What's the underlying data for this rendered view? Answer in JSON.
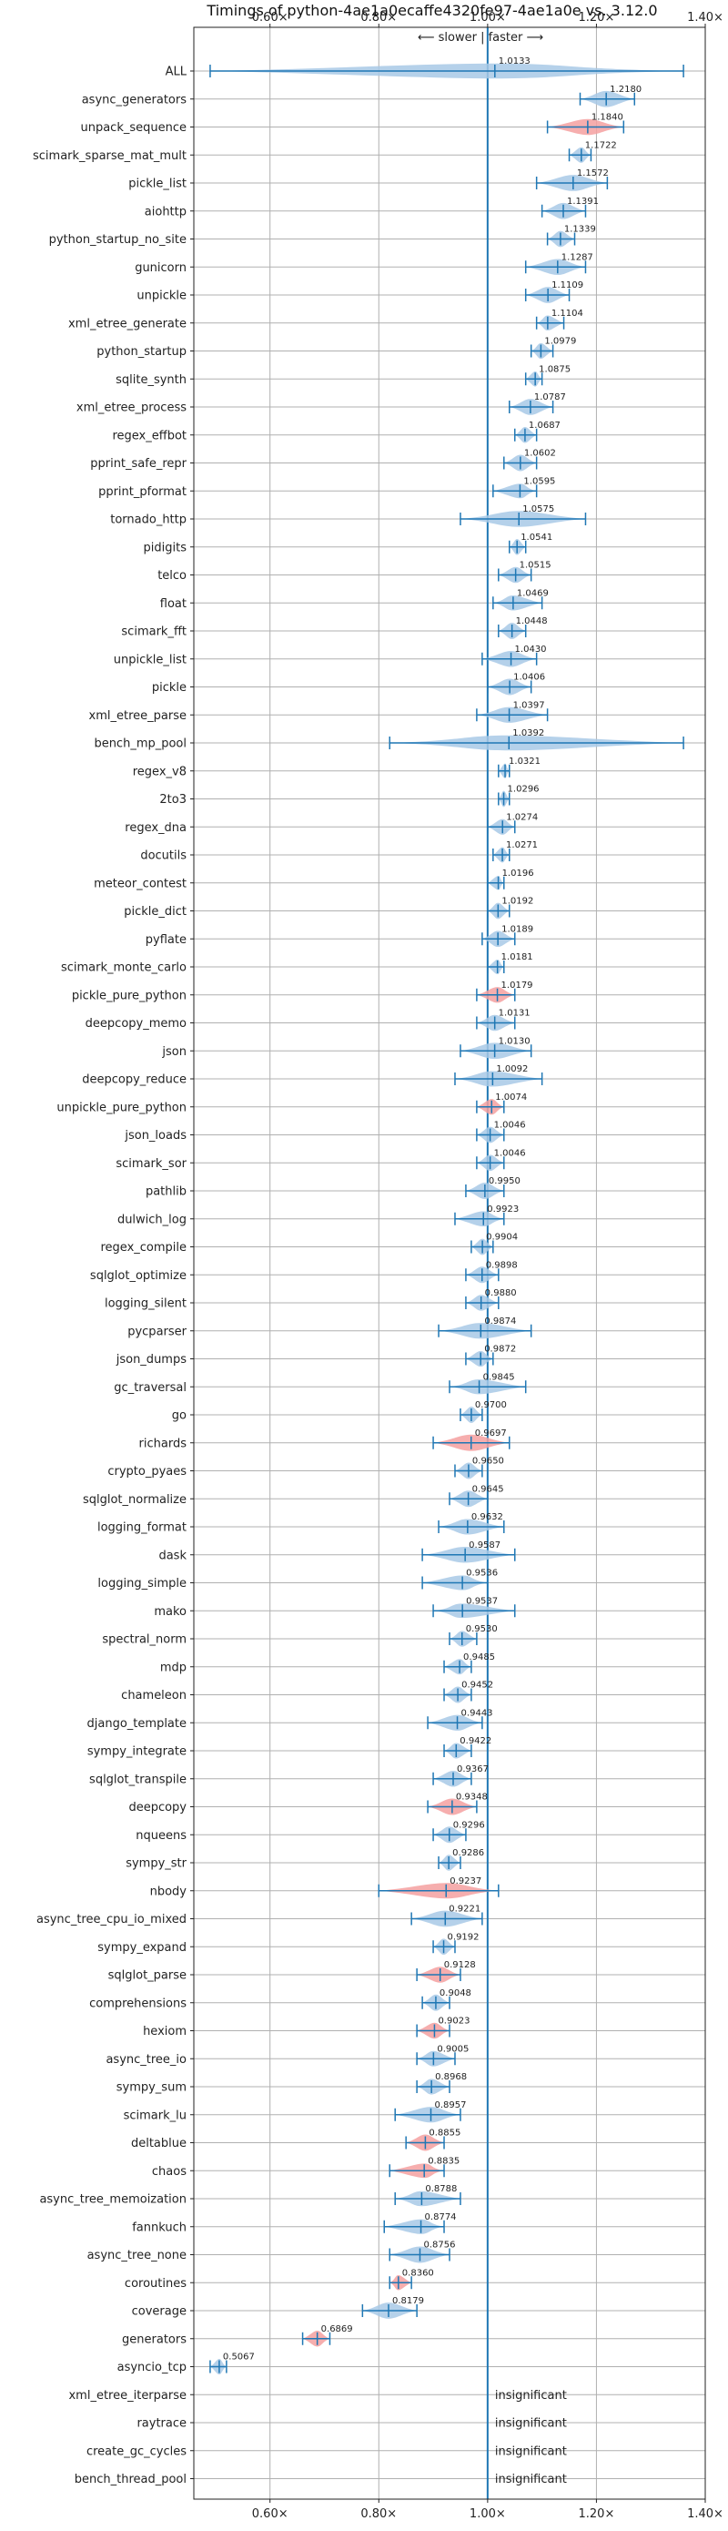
{
  "chart_data": {
    "type": "violin",
    "title": "Timings of python-4ae1a0ecaffe4320fe97-4ae1a0e vs. 3.12.0",
    "direction_annotation": "⟵ slower | faster ⟶",
    "xlim": [
      0.46,
      1.4
    ],
    "x_ticks": [
      0.6,
      0.8,
      1.0,
      1.2,
      1.4
    ],
    "x_tick_labels": [
      "0.60×",
      "0.80×",
      "1.00×",
      "1.20×",
      "1.40×"
    ],
    "reference_line": 1.0,
    "grid": true,
    "colors": {
      "faster": "#1f77b4",
      "faster_fill": "#a8c9e6",
      "slower_fill": "#f4a0a0",
      "grid": "#b0b0b0"
    },
    "insignificant_label": "insignificant",
    "benchmarks": [
      {
        "name": "ALL",
        "value": 1.0133,
        "min": 0.49,
        "max": 1.36,
        "color": "faster"
      },
      {
        "name": "async_generators",
        "value": 1.218,
        "min": 1.17,
        "max": 1.27,
        "color": "faster"
      },
      {
        "name": "unpack_sequence",
        "value": 1.184,
        "min": 1.11,
        "max": 1.25,
        "color": "slower"
      },
      {
        "name": "scimark_sparse_mat_mult",
        "value": 1.1722,
        "min": 1.15,
        "max": 1.19,
        "color": "faster"
      },
      {
        "name": "pickle_list",
        "value": 1.1572,
        "min": 1.09,
        "max": 1.22,
        "color": "faster"
      },
      {
        "name": "aiohttp",
        "value": 1.1391,
        "min": 1.1,
        "max": 1.18,
        "color": "faster"
      },
      {
        "name": "python_startup_no_site",
        "value": 1.1339,
        "min": 1.11,
        "max": 1.16,
        "color": "faster"
      },
      {
        "name": "gunicorn",
        "value": 1.1287,
        "min": 1.07,
        "max": 1.18,
        "color": "faster"
      },
      {
        "name": "unpickle",
        "value": 1.1109,
        "min": 1.07,
        "max": 1.15,
        "color": "faster"
      },
      {
        "name": "xml_etree_generate",
        "value": 1.1104,
        "min": 1.09,
        "max": 1.14,
        "color": "faster"
      },
      {
        "name": "python_startup",
        "value": 1.0979,
        "min": 1.08,
        "max": 1.12,
        "color": "faster"
      },
      {
        "name": "sqlite_synth",
        "value": 1.0875,
        "min": 1.07,
        "max": 1.1,
        "color": "faster"
      },
      {
        "name": "xml_etree_process",
        "value": 1.0787,
        "min": 1.04,
        "max": 1.12,
        "color": "faster"
      },
      {
        "name": "regex_effbot",
        "value": 1.0687,
        "min": 1.05,
        "max": 1.09,
        "color": "faster"
      },
      {
        "name": "pprint_safe_repr",
        "value": 1.0602,
        "min": 1.03,
        "max": 1.09,
        "color": "faster"
      },
      {
        "name": "pprint_pformat",
        "value": 1.0595,
        "min": 1.01,
        "max": 1.09,
        "color": "faster"
      },
      {
        "name": "tornado_http",
        "value": 1.0575,
        "min": 0.95,
        "max": 1.18,
        "color": "faster"
      },
      {
        "name": "pidigits",
        "value": 1.0541,
        "min": 1.04,
        "max": 1.07,
        "color": "faster"
      },
      {
        "name": "telco",
        "value": 1.0515,
        "min": 1.02,
        "max": 1.08,
        "color": "faster"
      },
      {
        "name": "float",
        "value": 1.0469,
        "min": 1.01,
        "max": 1.1,
        "color": "faster"
      },
      {
        "name": "scimark_fft",
        "value": 1.0448,
        "min": 1.02,
        "max": 1.07,
        "color": "faster"
      },
      {
        "name": "unpickle_list",
        "value": 1.043,
        "min": 0.99,
        "max": 1.09,
        "color": "faster"
      },
      {
        "name": "pickle",
        "value": 1.0406,
        "min": 1.0,
        "max": 1.08,
        "color": "faster"
      },
      {
        "name": "xml_etree_parse",
        "value": 1.0397,
        "min": 0.98,
        "max": 1.11,
        "color": "faster"
      },
      {
        "name": "bench_mp_pool",
        "value": 1.0392,
        "min": 0.82,
        "max": 1.36,
        "color": "faster"
      },
      {
        "name": "regex_v8",
        "value": 1.0321,
        "min": 1.02,
        "max": 1.04,
        "color": "faster"
      },
      {
        "name": "2to3",
        "value": 1.0296,
        "min": 1.02,
        "max": 1.04,
        "color": "faster"
      },
      {
        "name": "regex_dna",
        "value": 1.0274,
        "min": 1.0,
        "max": 1.05,
        "color": "faster"
      },
      {
        "name": "docutils",
        "value": 1.0271,
        "min": 1.01,
        "max": 1.04,
        "color": "faster"
      },
      {
        "name": "meteor_contest",
        "value": 1.0196,
        "min": 1.0,
        "max": 1.03,
        "color": "faster"
      },
      {
        "name": "pickle_dict",
        "value": 1.0192,
        "min": 1.0,
        "max": 1.04,
        "color": "faster"
      },
      {
        "name": "pyflate",
        "value": 1.0189,
        "min": 0.99,
        "max": 1.05,
        "color": "faster"
      },
      {
        "name": "scimark_monte_carlo",
        "value": 1.0181,
        "min": 1.0,
        "max": 1.03,
        "color": "faster"
      },
      {
        "name": "pickle_pure_python",
        "value": 1.0179,
        "min": 0.98,
        "max": 1.05,
        "color": "slower"
      },
      {
        "name": "deepcopy_memo",
        "value": 1.0131,
        "min": 0.98,
        "max": 1.05,
        "color": "faster"
      },
      {
        "name": "json",
        "value": 1.013,
        "min": 0.95,
        "max": 1.08,
        "color": "faster"
      },
      {
        "name": "deepcopy_reduce",
        "value": 1.0092,
        "min": 0.94,
        "max": 1.1,
        "color": "faster"
      },
      {
        "name": "unpickle_pure_python",
        "value": 1.0074,
        "min": 0.98,
        "max": 1.03,
        "color": "slower"
      },
      {
        "name": "json_loads",
        "value": 1.0046,
        "min": 0.98,
        "max": 1.03,
        "color": "faster"
      },
      {
        "name": "scimark_sor",
        "value": 1.0046,
        "min": 0.98,
        "max": 1.03,
        "color": "faster"
      },
      {
        "name": "pathlib",
        "value": 0.995,
        "min": 0.96,
        "max": 1.03,
        "color": "faster"
      },
      {
        "name": "dulwich_log",
        "value": 0.9923,
        "min": 0.94,
        "max": 1.03,
        "color": "faster"
      },
      {
        "name": "regex_compile",
        "value": 0.9904,
        "min": 0.97,
        "max": 1.01,
        "color": "faster"
      },
      {
        "name": "sqlglot_optimize",
        "value": 0.9898,
        "min": 0.96,
        "max": 1.02,
        "color": "faster"
      },
      {
        "name": "logging_silent",
        "value": 0.988,
        "min": 0.96,
        "max": 1.02,
        "color": "faster"
      },
      {
        "name": "pycparser",
        "value": 0.9874,
        "min": 0.91,
        "max": 1.08,
        "color": "faster"
      },
      {
        "name": "json_dumps",
        "value": 0.9872,
        "min": 0.96,
        "max": 1.01,
        "color": "faster"
      },
      {
        "name": "gc_traversal",
        "value": 0.9845,
        "min": 0.93,
        "max": 1.07,
        "color": "faster"
      },
      {
        "name": "go",
        "value": 0.97,
        "min": 0.95,
        "max": 0.99,
        "color": "faster"
      },
      {
        "name": "richards",
        "value": 0.9697,
        "min": 0.9,
        "max": 1.04,
        "color": "slower"
      },
      {
        "name": "crypto_pyaes",
        "value": 0.965,
        "min": 0.94,
        "max": 0.99,
        "color": "faster"
      },
      {
        "name": "sqlglot_normalize",
        "value": 0.9645,
        "min": 0.93,
        "max": 1.0,
        "color": "faster"
      },
      {
        "name": "logging_format",
        "value": 0.9632,
        "min": 0.91,
        "max": 1.03,
        "color": "faster"
      },
      {
        "name": "dask",
        "value": 0.9587,
        "min": 0.88,
        "max": 1.05,
        "color": "faster"
      },
      {
        "name": "logging_simple",
        "value": 0.9536,
        "min": 0.88,
        "max": 1.0,
        "color": "faster"
      },
      {
        "name": "mako",
        "value": 0.9537,
        "min": 0.9,
        "max": 1.05,
        "color": "faster"
      },
      {
        "name": "spectral_norm",
        "value": 0.953,
        "min": 0.93,
        "max": 0.98,
        "color": "faster"
      },
      {
        "name": "mdp",
        "value": 0.9485,
        "min": 0.92,
        "max": 0.97,
        "color": "faster"
      },
      {
        "name": "chameleon",
        "value": 0.9452,
        "min": 0.92,
        "max": 0.97,
        "color": "faster"
      },
      {
        "name": "django_template",
        "value": 0.9443,
        "min": 0.89,
        "max": 0.99,
        "color": "faster"
      },
      {
        "name": "sympy_integrate",
        "value": 0.9422,
        "min": 0.92,
        "max": 0.97,
        "color": "faster"
      },
      {
        "name": "sqlglot_transpile",
        "value": 0.9367,
        "min": 0.9,
        "max": 0.97,
        "color": "faster"
      },
      {
        "name": "deepcopy",
        "value": 0.9348,
        "min": 0.89,
        "max": 0.98,
        "color": "slower"
      },
      {
        "name": "nqueens",
        "value": 0.9296,
        "min": 0.9,
        "max": 0.96,
        "color": "faster"
      },
      {
        "name": "sympy_str",
        "value": 0.9286,
        "min": 0.91,
        "max": 0.95,
        "color": "faster"
      },
      {
        "name": "nbody",
        "value": 0.9237,
        "min": 0.8,
        "max": 1.02,
        "color": "slower"
      },
      {
        "name": "async_tree_cpu_io_mixed",
        "value": 0.9221,
        "min": 0.86,
        "max": 0.99,
        "color": "faster"
      },
      {
        "name": "sympy_expand",
        "value": 0.9192,
        "min": 0.9,
        "max": 0.94,
        "color": "faster"
      },
      {
        "name": "sqlglot_parse",
        "value": 0.9128,
        "min": 0.87,
        "max": 0.95,
        "color": "slower"
      },
      {
        "name": "comprehensions",
        "value": 0.9048,
        "min": 0.88,
        "max": 0.93,
        "color": "faster"
      },
      {
        "name": "hexiom",
        "value": 0.9023,
        "min": 0.87,
        "max": 0.93,
        "color": "slower"
      },
      {
        "name": "async_tree_io",
        "value": 0.9005,
        "min": 0.87,
        "max": 0.94,
        "color": "faster"
      },
      {
        "name": "sympy_sum",
        "value": 0.8968,
        "min": 0.87,
        "max": 0.93,
        "color": "faster"
      },
      {
        "name": "scimark_lu",
        "value": 0.8957,
        "min": 0.83,
        "max": 0.95,
        "color": "faster"
      },
      {
        "name": "deltablue",
        "value": 0.8855,
        "min": 0.85,
        "max": 0.92,
        "color": "slower"
      },
      {
        "name": "chaos",
        "value": 0.8835,
        "min": 0.82,
        "max": 0.92,
        "color": "slower"
      },
      {
        "name": "async_tree_memoization",
        "value": 0.8788,
        "min": 0.83,
        "max": 0.95,
        "color": "faster"
      },
      {
        "name": "fannkuch",
        "value": 0.8774,
        "min": 0.81,
        "max": 0.92,
        "color": "faster"
      },
      {
        "name": "async_tree_none",
        "value": 0.8756,
        "min": 0.82,
        "max": 0.93,
        "color": "faster"
      },
      {
        "name": "coroutines",
        "value": 0.836,
        "min": 0.82,
        "max": 0.86,
        "color": "slower"
      },
      {
        "name": "coverage",
        "value": 0.8179,
        "min": 0.77,
        "max": 0.87,
        "color": "faster"
      },
      {
        "name": "generators",
        "value": 0.6869,
        "min": 0.66,
        "max": 0.71,
        "color": "slower"
      },
      {
        "name": "asyncio_tcp",
        "value": 0.5067,
        "min": 0.49,
        "max": 0.52,
        "color": "faster"
      },
      {
        "name": "xml_etree_iterparse",
        "value": null,
        "min": null,
        "max": null,
        "color": "none"
      },
      {
        "name": "raytrace",
        "value": null,
        "min": null,
        "max": null,
        "color": "none"
      },
      {
        "name": "create_gc_cycles",
        "value": null,
        "min": null,
        "max": null,
        "color": "none"
      },
      {
        "name": "bench_thread_pool",
        "value": null,
        "min": null,
        "max": null,
        "color": "none"
      }
    ]
  }
}
